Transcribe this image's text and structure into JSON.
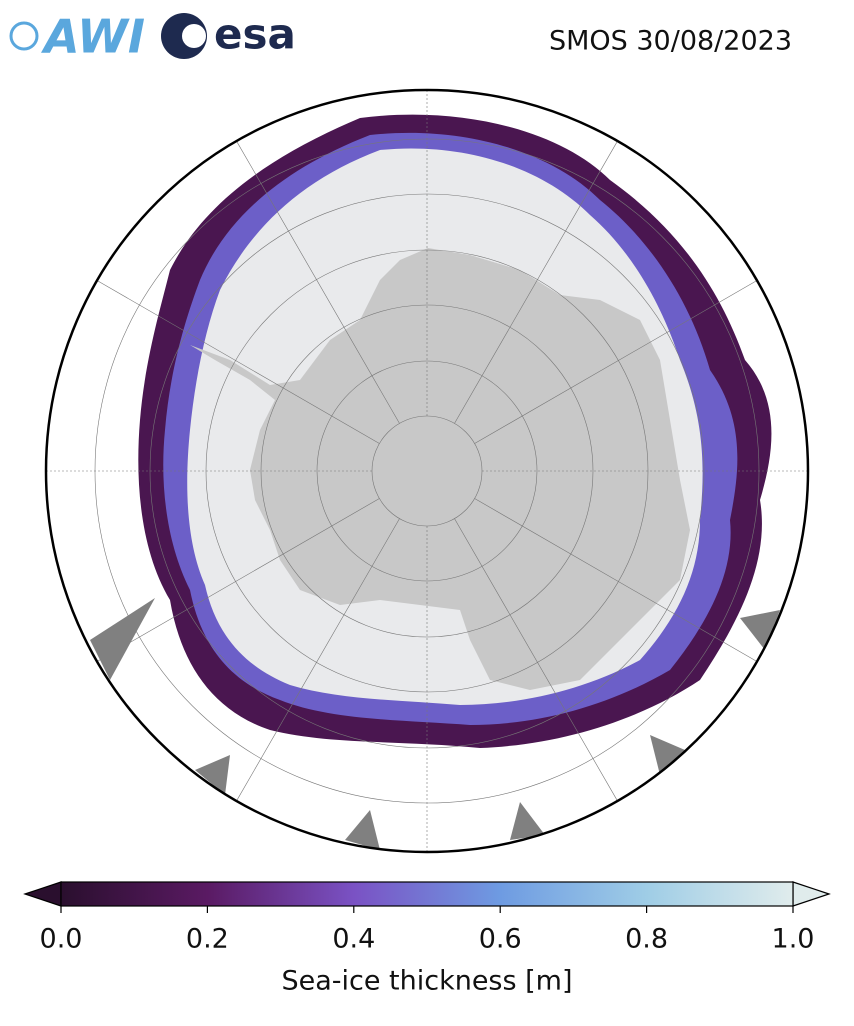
{
  "header": {
    "title": "SMOS 30/08/2023",
    "logos": {
      "awi": "AWI",
      "esa": "esa"
    }
  },
  "colorbar": {
    "label": "Sea-ice thickness [m]",
    "lim": [
      0,
      1
    ],
    "ticks": [
      {
        "value": 0,
        "label": "0.0"
      },
      0.2,
      0.4,
      0.6,
      0.8,
      {
        "value": 1,
        "label": "1.0"
      }
    ],
    "colors": [
      "#2a0f2e",
      "#5a1a63",
      "#7a52c4",
      "#6e9be2",
      "#9fcde6",
      "#e0ecec"
    ]
  }
}
